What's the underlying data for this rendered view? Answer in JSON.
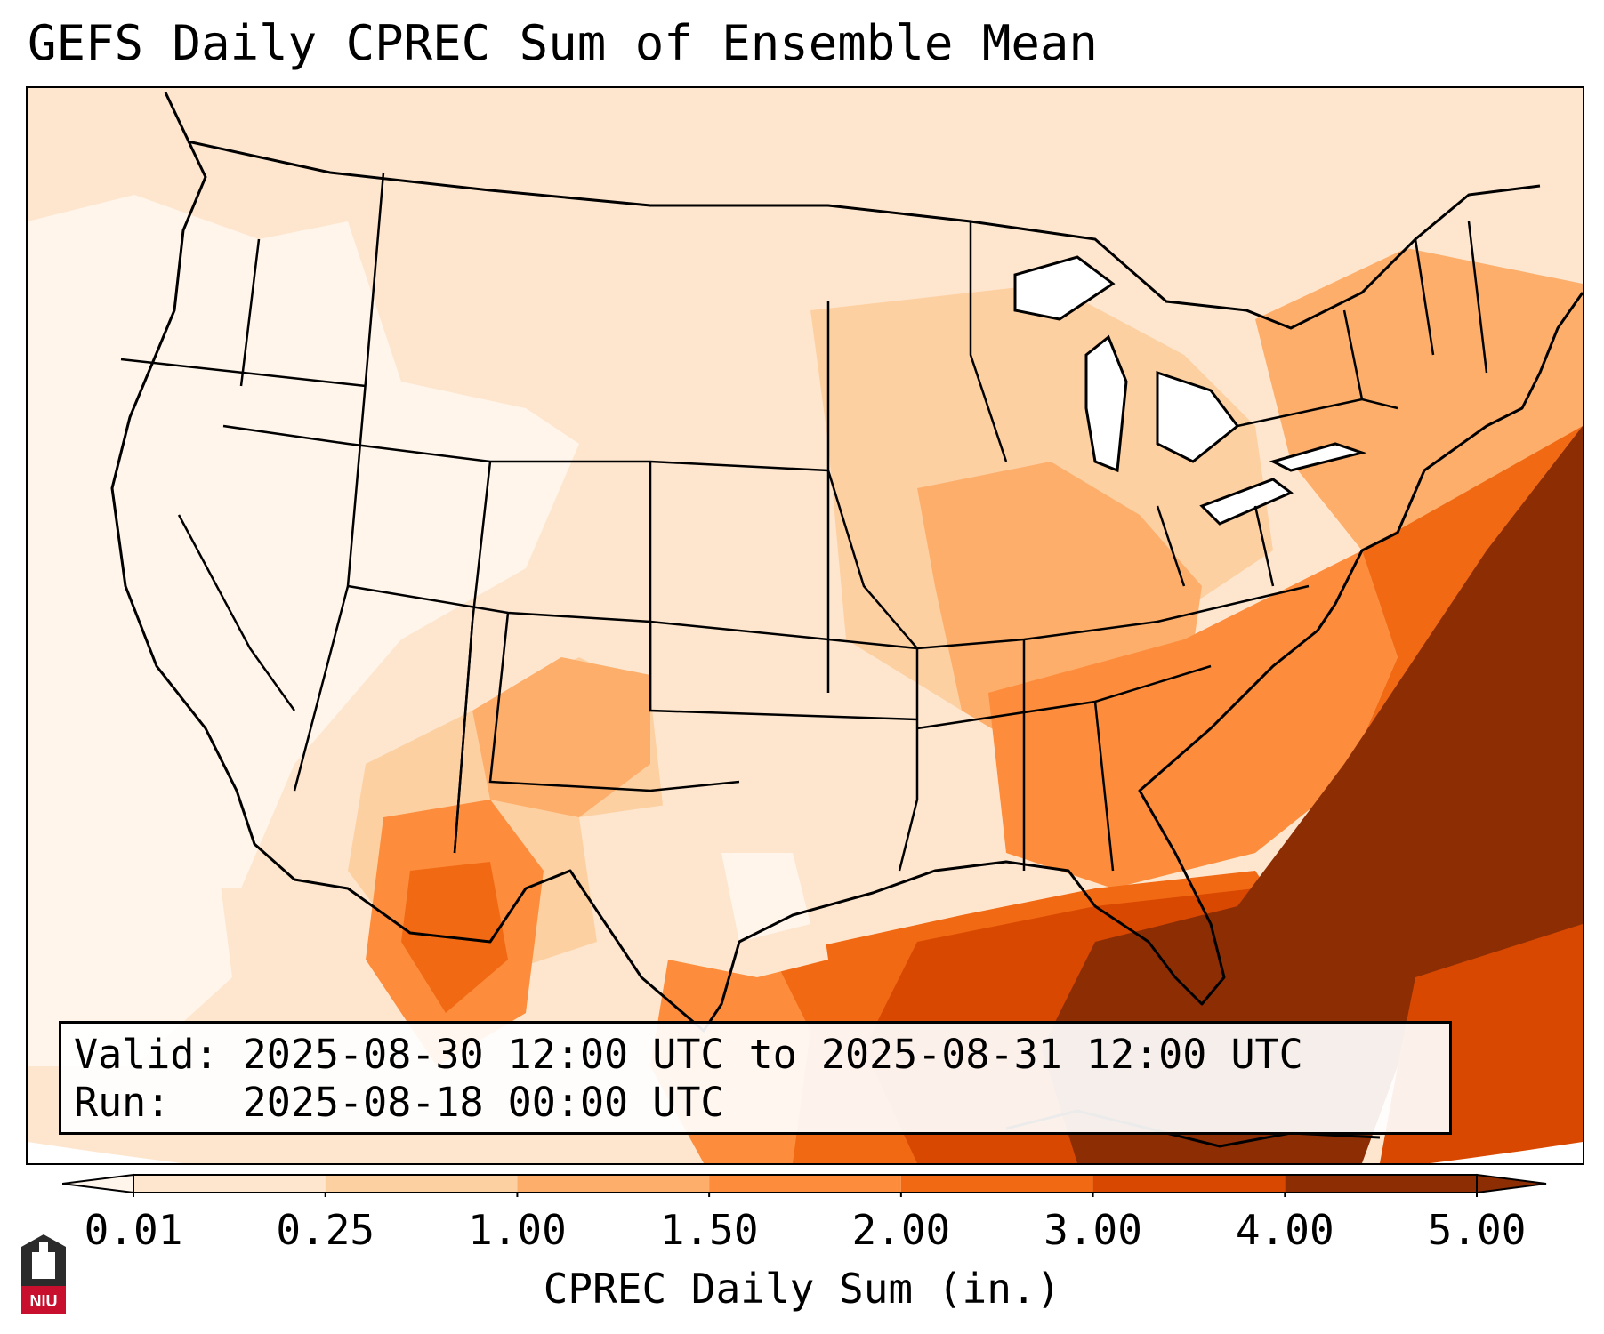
{
  "title": "GEFS Daily CPREC Sum of Ensemble Mean",
  "info": {
    "valid_label": "Valid:",
    "valid_range": "2025-08-30 12:00 UTC to 2025-08-31 12:00 UTC",
    "run_label": "Run:",
    "run_time": "2025-08-18 00:00 UTC"
  },
  "colorbar": {
    "label": "CPREC Daily Sum (in.)",
    "ticks": [
      "0.01",
      "0.25",
      "1.00",
      "1.50",
      "2.00",
      "3.00",
      "4.00",
      "5.00"
    ],
    "colors": [
      "#fff5eb",
      "#fee6ce",
      "#fdd0a2",
      "#fdae6b",
      "#fd8d3c",
      "#f16913",
      "#d94801",
      "#8c2d04"
    ]
  },
  "logo": {
    "text": "NIU",
    "name": "Northern Illinois University"
  },
  "map": {
    "region": "Contiguous United States",
    "ocean_color": "#ffffff",
    "heavy_color": "#8c2d04"
  }
}
